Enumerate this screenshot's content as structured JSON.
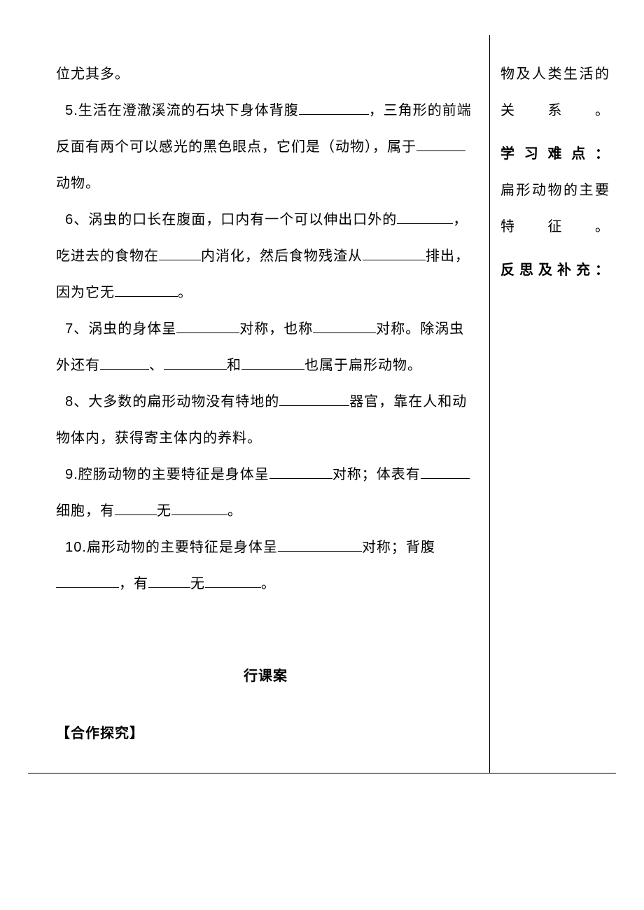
{
  "left": {
    "line_yq": "位尤其多。",
    "q5_a": "5.生活在澄澈溪流的石块下身体背腹",
    "q5_b": "，三角形的前端反面有两个可以感光的黑色眼点，它们是（动物），属于",
    "q5_c": "动物。",
    "q6_a": "6、涡虫的口长在腹面，口内有一个可以伸出口外的",
    "q6_b": "，吃进去的食物在",
    "q6_c": "内消化，然后食物残渣从",
    "q6_d": "排出，因为它无",
    "q6_e": "。",
    "q7_a": "7、涡虫的身体呈",
    "q7_b": "对称，也称",
    "q7_c": "对称。除涡虫外还有",
    "q7_d": "、",
    "q7_e": "和",
    "q7_f": "也属于扁形动物。",
    "q8_a": "8、大多数的扁形动物没有特地的",
    "q8_b": "器官，靠在人和动物体内，获得寄主体内的养料。",
    "q9_a": "9.腔肠动物的主要特征是身体呈",
    "q9_b": "对称；体表有",
    "q9_c": "细胞，有",
    "q9_d": "无",
    "q9_e": "。",
    "q10_a": "10.扁形动物的主要特征是身体呈",
    "q10_b": "对称；背腹",
    "q10_c": "，有",
    "q10_d": "无",
    "q10_e": "。",
    "section_title": "行课案",
    "coop": "【合作探究】"
  },
  "right": {
    "r1": "物及人类生活的关系。",
    "r2_label": "学习难点：",
    "r2_text": "扁形动物的主要特征。",
    "r3_label": "反思及补充："
  }
}
